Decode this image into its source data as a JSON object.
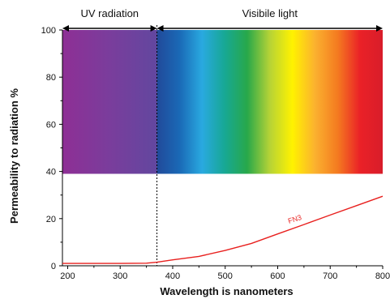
{
  "chart_data": {
    "type": "line",
    "xlabel": "Wavelength is nanometers",
    "ylabel": "Permeability to radiation %",
    "xlim": [
      190,
      800
    ],
    "ylim": [
      0,
      100
    ],
    "x_ticks": [
      200,
      300,
      400,
      500,
      600,
      700,
      800
    ],
    "y_ticks": [
      0,
      20,
      40,
      60,
      80,
      100
    ],
    "regions": [
      {
        "label": "UV radiation",
        "x_start": 190,
        "x_end": 370
      },
      {
        "label": "Visibile light",
        "x_start": 370,
        "x_end": 800
      }
    ],
    "divider_x": 370,
    "spectrum_band": {
      "y_start": 39,
      "y_end": 100
    },
    "spectrum_colors": {
      "uv": [
        "#8e2f95",
        "#7a3d9c",
        "#62479f"
      ],
      "visible": [
        "#214a9a",
        "#1a69b6",
        "#29a9e0",
        "#17a894",
        "#28a84a",
        "#b6d336",
        "#fff200",
        "#fbb12f",
        "#f47b20",
        "#ea2127",
        "#d81d2a"
      ]
    },
    "series": [
      {
        "name": "FN3",
        "color": "#e8201e",
        "x": [
          190,
          250,
          300,
          350,
          370,
          400,
          450,
          500,
          550,
          600,
          650,
          700,
          750,
          800
        ],
        "y": [
          1.0,
          1.0,
          1.0,
          1.1,
          1.5,
          2.5,
          4.0,
          6.5,
          9.5,
          13.5,
          17.5,
          21.5,
          25.5,
          29.5
        ]
      }
    ]
  }
}
